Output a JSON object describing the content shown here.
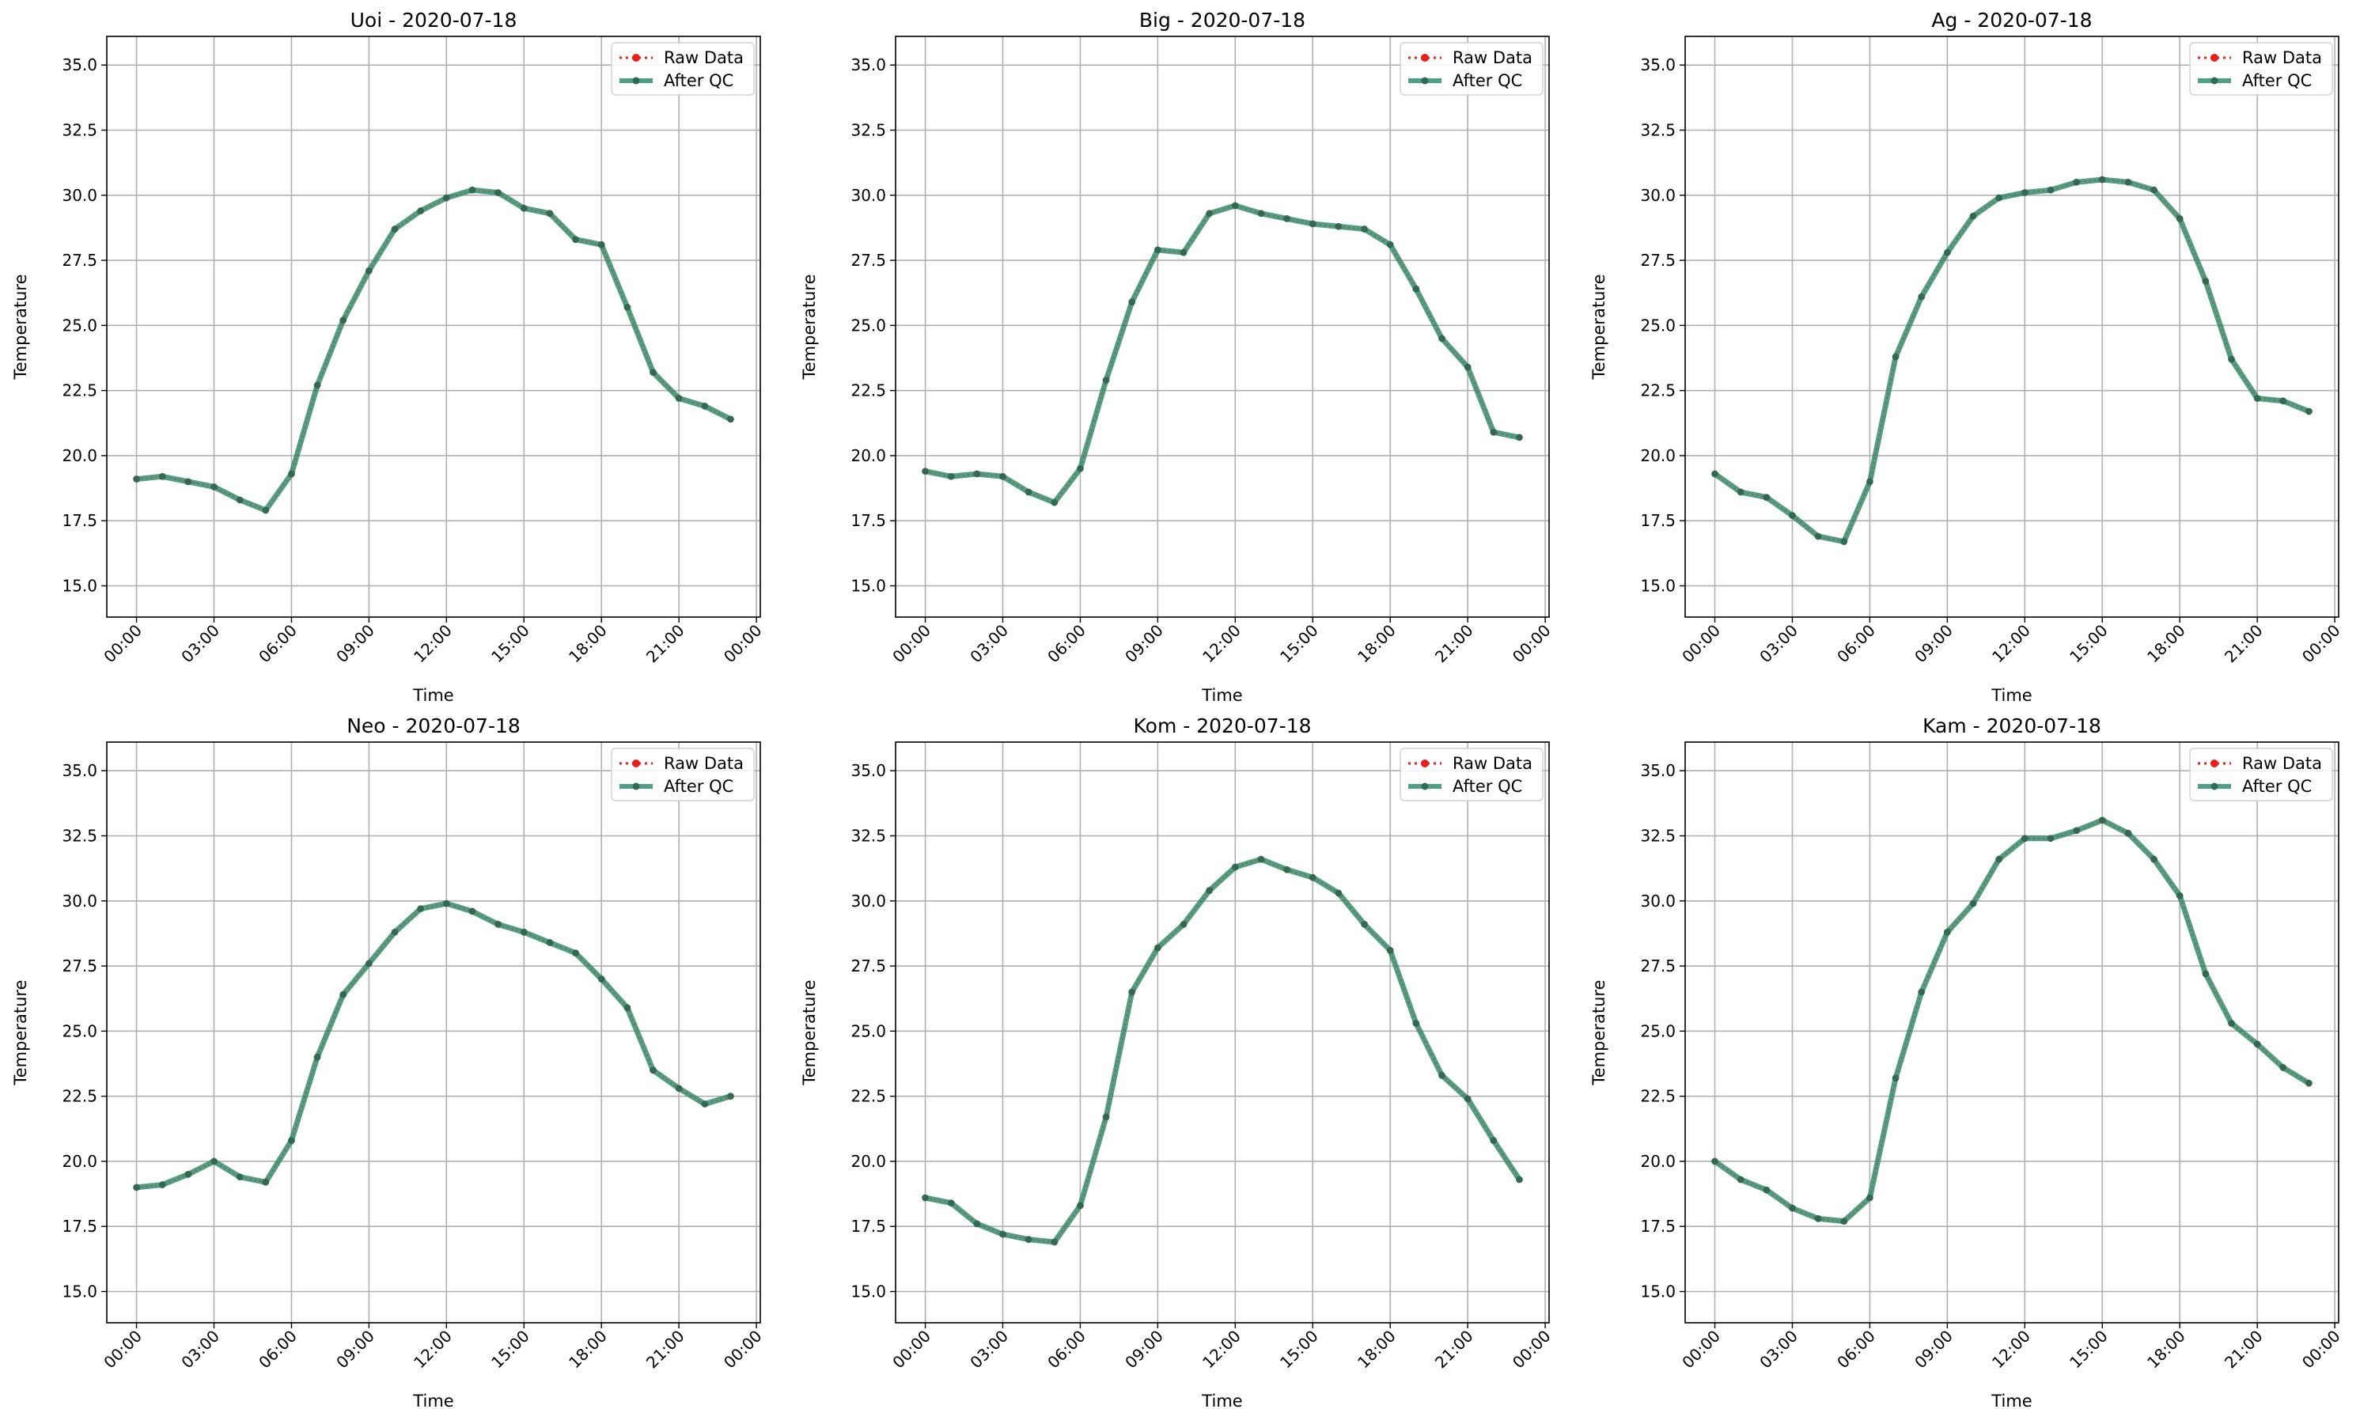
{
  "figure": {
    "legend_labels": [
      "Raw Data",
      "After QC"
    ],
    "colors": {
      "raw": "#e8201a",
      "qc": "#2f8f70",
      "qc_dot": "#2b6b55",
      "grid": "#b0b0b0",
      "axis": "#000000"
    }
  },
  "chart_data": [
    {
      "type": "line",
      "title": "Uoi - 2020-07-18",
      "xlabel": "Time",
      "ylabel": "Temperature",
      "x": [
        "00:00",
        "01:00",
        "02:00",
        "03:00",
        "04:00",
        "05:00",
        "06:00",
        "07:00",
        "08:00",
        "09:00",
        "10:00",
        "11:00",
        "12:00",
        "13:00",
        "14:00",
        "15:00",
        "16:00",
        "17:00",
        "18:00",
        "19:00",
        "20:00",
        "21:00",
        "22:00",
        "23:00"
      ],
      "xticks": [
        "00:00",
        "03:00",
        "06:00",
        "09:00",
        "12:00",
        "15:00",
        "18:00",
        "21:00",
        "00:00"
      ],
      "ylim": [
        13.8,
        36.1
      ],
      "yticks": [
        "15.0",
        "17.5",
        "20.0",
        "22.5",
        "25.0",
        "27.5",
        "30.0",
        "32.5",
        "35.0"
      ],
      "grid": true,
      "legend": "top-right",
      "series": [
        {
          "name": "Raw Data",
          "values": [
            19.1,
            19.2,
            19.0,
            18.8,
            18.3,
            17.9,
            19.3,
            22.7,
            25.2,
            27.1,
            28.7,
            29.4,
            29.9,
            30.2,
            30.1,
            29.5,
            29.3,
            28.3,
            28.1,
            25.7,
            23.2,
            22.2,
            21.9,
            21.4
          ]
        },
        {
          "name": "After QC",
          "values": [
            19.1,
            19.2,
            19.0,
            18.8,
            18.3,
            17.9,
            19.3,
            22.7,
            25.2,
            27.1,
            28.7,
            29.4,
            29.9,
            30.2,
            30.1,
            29.5,
            29.3,
            28.3,
            28.1,
            25.7,
            23.2,
            22.2,
            21.9,
            21.4
          ]
        }
      ]
    },
    {
      "type": "line",
      "title": "Big - 2020-07-18",
      "xlabel": "Time",
      "ylabel": "Temperature",
      "x": [
        "00:00",
        "01:00",
        "02:00",
        "03:00",
        "04:00",
        "05:00",
        "06:00",
        "07:00",
        "08:00",
        "09:00",
        "10:00",
        "11:00",
        "12:00",
        "13:00",
        "14:00",
        "15:00",
        "16:00",
        "17:00",
        "18:00",
        "19:00",
        "20:00",
        "21:00",
        "22:00",
        "23:00"
      ],
      "xticks": [
        "00:00",
        "03:00",
        "06:00",
        "09:00",
        "12:00",
        "15:00",
        "18:00",
        "21:00",
        "00:00"
      ],
      "ylim": [
        13.8,
        36.1
      ],
      "yticks": [
        "15.0",
        "17.5",
        "20.0",
        "22.5",
        "25.0",
        "27.5",
        "30.0",
        "32.5",
        "35.0"
      ],
      "grid": true,
      "legend": "top-right",
      "series": [
        {
          "name": "Raw Data",
          "values": [
            19.4,
            19.2,
            19.3,
            19.2,
            18.6,
            18.2,
            19.5,
            22.9,
            25.9,
            27.9,
            27.8,
            29.3,
            29.6,
            29.3,
            29.1,
            28.9,
            28.8,
            28.7,
            28.1,
            26.4,
            24.5,
            23.4,
            20.9,
            20.7
          ]
        },
        {
          "name": "After QC",
          "values": [
            19.4,
            19.2,
            19.3,
            19.2,
            18.6,
            18.2,
            19.5,
            22.9,
            25.9,
            27.9,
            27.8,
            29.3,
            29.6,
            29.3,
            29.1,
            28.9,
            28.8,
            28.7,
            28.1,
            26.4,
            24.5,
            23.4,
            20.9,
            20.7
          ]
        }
      ]
    },
    {
      "type": "line",
      "title": "Ag - 2020-07-18",
      "xlabel": "Time",
      "ylabel": "Temperature",
      "x": [
        "00:00",
        "01:00",
        "02:00",
        "03:00",
        "04:00",
        "05:00",
        "06:00",
        "07:00",
        "08:00",
        "09:00",
        "10:00",
        "11:00",
        "12:00",
        "13:00",
        "14:00",
        "15:00",
        "16:00",
        "17:00",
        "18:00",
        "19:00",
        "20:00",
        "21:00",
        "22:00",
        "23:00"
      ],
      "xticks": [
        "00:00",
        "03:00",
        "06:00",
        "09:00",
        "12:00",
        "15:00",
        "18:00",
        "21:00",
        "00:00"
      ],
      "ylim": [
        13.8,
        36.1
      ],
      "yticks": [
        "15.0",
        "17.5",
        "20.0",
        "22.5",
        "25.0",
        "27.5",
        "30.0",
        "32.5",
        "35.0"
      ],
      "grid": true,
      "legend": "top-right",
      "series": [
        {
          "name": "Raw Data",
          "values": [
            19.3,
            18.6,
            18.4,
            17.7,
            16.9,
            16.7,
            19.0,
            23.8,
            26.1,
            27.8,
            29.2,
            29.9,
            30.1,
            30.2,
            30.5,
            30.6,
            30.5,
            30.2,
            29.1,
            26.7,
            23.7,
            22.2,
            22.1,
            21.7
          ]
        },
        {
          "name": "After QC",
          "values": [
            19.3,
            18.6,
            18.4,
            17.7,
            16.9,
            16.7,
            19.0,
            23.8,
            26.1,
            27.8,
            29.2,
            29.9,
            30.1,
            30.2,
            30.5,
            30.6,
            30.5,
            30.2,
            29.1,
            26.7,
            23.7,
            22.2,
            22.1,
            21.7
          ]
        }
      ]
    },
    {
      "type": "line",
      "title": "Neo - 2020-07-18",
      "xlabel": "Time",
      "ylabel": "Temperature",
      "x": [
        "00:00",
        "01:00",
        "02:00",
        "03:00",
        "04:00",
        "05:00",
        "06:00",
        "07:00",
        "08:00",
        "09:00",
        "10:00",
        "11:00",
        "12:00",
        "13:00",
        "14:00",
        "15:00",
        "16:00",
        "17:00",
        "18:00",
        "19:00",
        "20:00",
        "21:00",
        "22:00",
        "23:00"
      ],
      "xticks": [
        "00:00",
        "03:00",
        "06:00",
        "09:00",
        "12:00",
        "15:00",
        "18:00",
        "21:00",
        "00:00"
      ],
      "ylim": [
        13.8,
        36.1
      ],
      "yticks": [
        "15.0",
        "17.5",
        "20.0",
        "22.5",
        "25.0",
        "27.5",
        "30.0",
        "32.5",
        "35.0"
      ],
      "grid": true,
      "legend": "top-right",
      "series": [
        {
          "name": "Raw Data",
          "values": [
            19.0,
            19.1,
            19.5,
            20.0,
            19.4,
            19.2,
            20.8,
            24.0,
            26.4,
            27.6,
            28.8,
            29.7,
            29.9,
            29.6,
            29.1,
            28.8,
            28.4,
            28.0,
            27.0,
            25.9,
            23.5,
            22.8,
            22.2,
            22.5
          ]
        },
        {
          "name": "After QC",
          "values": [
            19.0,
            19.1,
            19.5,
            20.0,
            19.4,
            19.2,
            20.8,
            24.0,
            26.4,
            27.6,
            28.8,
            29.7,
            29.9,
            29.6,
            29.1,
            28.8,
            28.4,
            28.0,
            27.0,
            25.9,
            23.5,
            22.8,
            22.2,
            22.5
          ]
        }
      ]
    },
    {
      "type": "line",
      "title": "Kom - 2020-07-18",
      "xlabel": "Time",
      "ylabel": "Temperature",
      "x": [
        "00:00",
        "01:00",
        "02:00",
        "03:00",
        "04:00",
        "05:00",
        "06:00",
        "07:00",
        "08:00",
        "09:00",
        "10:00",
        "11:00",
        "12:00",
        "13:00",
        "14:00",
        "15:00",
        "16:00",
        "17:00",
        "18:00",
        "19:00",
        "20:00",
        "21:00",
        "22:00",
        "23:00"
      ],
      "xticks": [
        "00:00",
        "03:00",
        "06:00",
        "09:00",
        "12:00",
        "15:00",
        "18:00",
        "21:00",
        "00:00"
      ],
      "ylim": [
        13.8,
        36.1
      ],
      "yticks": [
        "15.0",
        "17.5",
        "20.0",
        "22.5",
        "25.0",
        "27.5",
        "30.0",
        "32.5",
        "35.0"
      ],
      "grid": true,
      "legend": "top-right",
      "series": [
        {
          "name": "Raw Data",
          "values": [
            18.6,
            18.4,
            17.6,
            17.2,
            17.0,
            16.9,
            18.3,
            21.7,
            26.5,
            28.2,
            29.1,
            30.4,
            31.3,
            31.6,
            31.2,
            30.9,
            30.3,
            29.1,
            28.1,
            25.3,
            23.3,
            22.4,
            20.8,
            19.3
          ]
        },
        {
          "name": "After QC",
          "values": [
            18.6,
            18.4,
            17.6,
            17.2,
            17.0,
            16.9,
            18.3,
            21.7,
            26.5,
            28.2,
            29.1,
            30.4,
            31.3,
            31.6,
            31.2,
            30.9,
            30.3,
            29.1,
            28.1,
            25.3,
            23.3,
            22.4,
            20.8,
            19.3
          ]
        }
      ]
    },
    {
      "type": "line",
      "title": "Kam - 2020-07-18",
      "xlabel": "Time",
      "ylabel": "Temperature",
      "x": [
        "00:00",
        "01:00",
        "02:00",
        "03:00",
        "04:00",
        "05:00",
        "06:00",
        "07:00",
        "08:00",
        "09:00",
        "10:00",
        "11:00",
        "12:00",
        "13:00",
        "14:00",
        "15:00",
        "16:00",
        "17:00",
        "18:00",
        "19:00",
        "20:00",
        "21:00",
        "22:00",
        "23:00"
      ],
      "xticks": [
        "00:00",
        "03:00",
        "06:00",
        "09:00",
        "12:00",
        "15:00",
        "18:00",
        "21:00",
        "00:00"
      ],
      "ylim": [
        13.8,
        36.1
      ],
      "yticks": [
        "15.0",
        "17.5",
        "20.0",
        "22.5",
        "25.0",
        "27.5",
        "30.0",
        "32.5",
        "35.0"
      ],
      "grid": true,
      "legend": "top-right",
      "series": [
        {
          "name": "Raw Data",
          "values": [
            20.0,
            19.3,
            18.9,
            18.2,
            17.8,
            17.7,
            18.6,
            23.2,
            26.5,
            28.8,
            29.9,
            31.6,
            32.4,
            32.4,
            32.7,
            33.1,
            32.6,
            31.6,
            30.2,
            27.2,
            25.3,
            24.5,
            23.6,
            23.0
          ]
        },
        {
          "name": "After QC",
          "values": [
            20.0,
            19.3,
            18.9,
            18.2,
            17.8,
            17.7,
            18.6,
            23.2,
            26.5,
            28.8,
            29.9,
            31.6,
            32.4,
            32.4,
            32.7,
            33.1,
            32.6,
            31.6,
            30.2,
            27.2,
            25.3,
            24.5,
            23.6,
            23.0
          ]
        }
      ]
    }
  ]
}
